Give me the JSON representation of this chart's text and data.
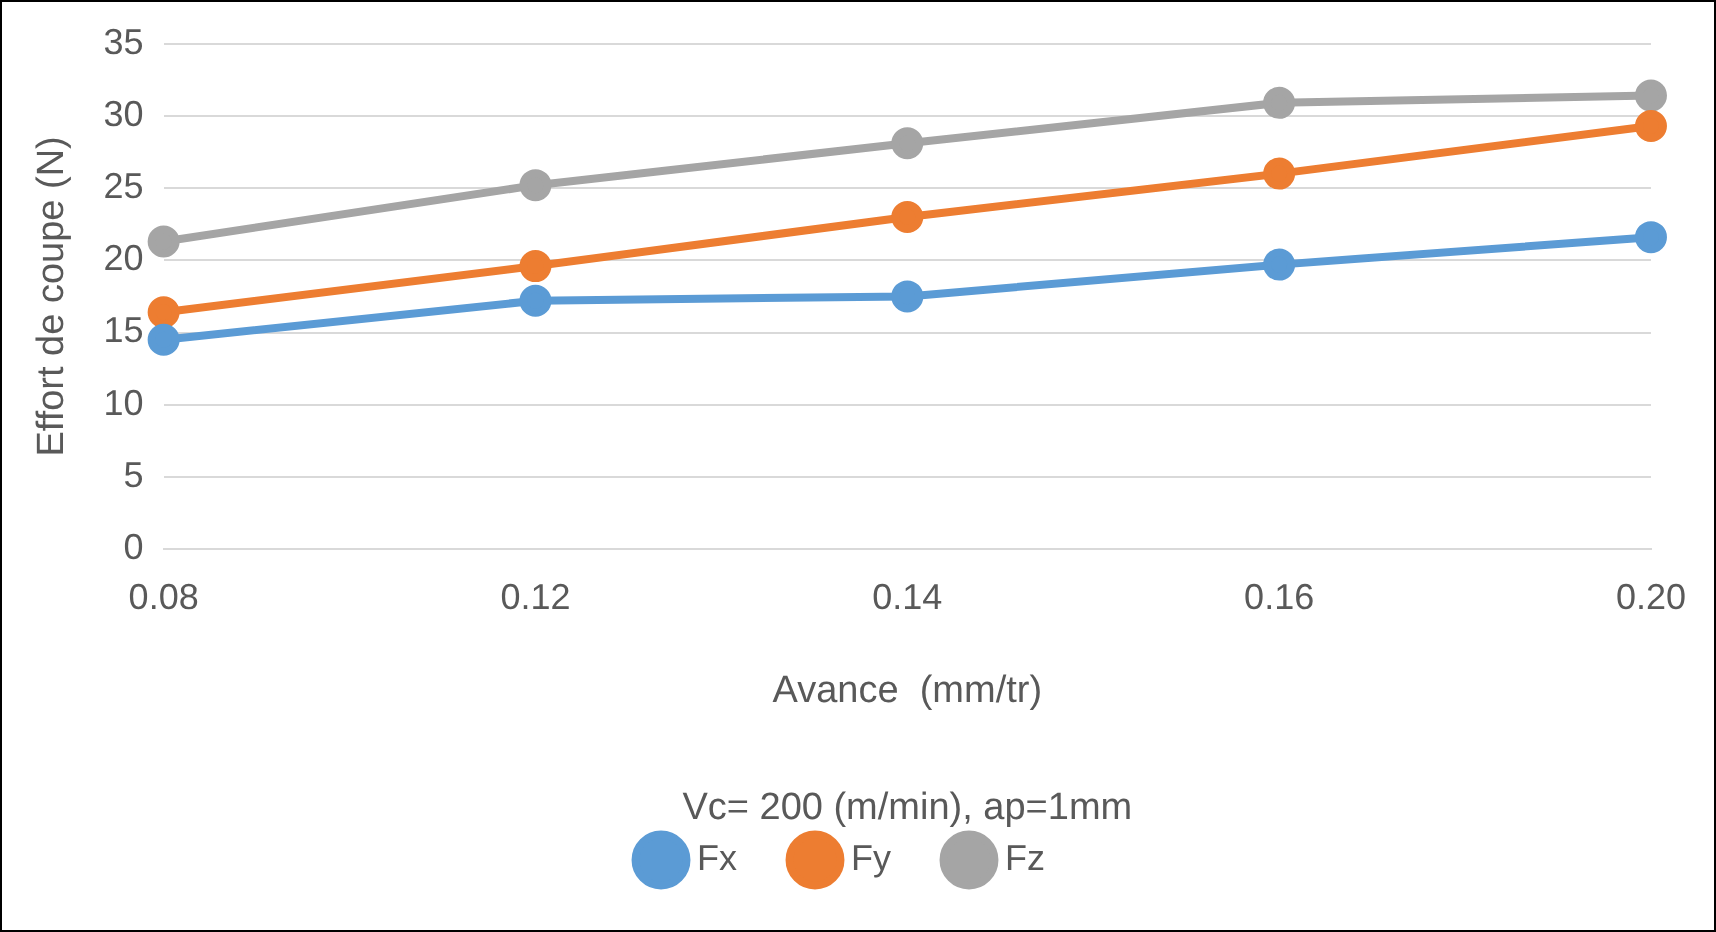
{
  "chart_data": {
    "type": "line",
    "xlabel": "Avance  (mm/tr)",
    "ylabel": "Effort de coupe (N)",
    "annotations": [
      "Vc= 200 (m/min), ap=1mm"
    ],
    "categories": [
      "0.08",
      "0.12",
      "0.14",
      "0.16",
      "0.20"
    ],
    "series": [
      {
        "name": "Fx",
        "color": "#5b9bd5",
        "values": [
          14.5,
          17.2,
          17.5,
          19.7,
          21.6
        ]
      },
      {
        "name": "Fy",
        "color": "#ed7d31",
        "values": [
          16.4,
          19.6,
          23.0,
          26.0,
          29.3
        ]
      },
      {
        "name": "Fz",
        "color": "#a5a5a5",
        "values": [
          21.3,
          25.2,
          28.1,
          30.9,
          31.4
        ]
      }
    ],
    "ylim": [
      0,
      35
    ],
    "yticks": [
      0,
      5,
      10,
      15,
      20,
      25,
      30,
      35
    ],
    "grid": "y",
    "legend": "bottom",
    "marker": "circle",
    "line_style": "solid"
  }
}
